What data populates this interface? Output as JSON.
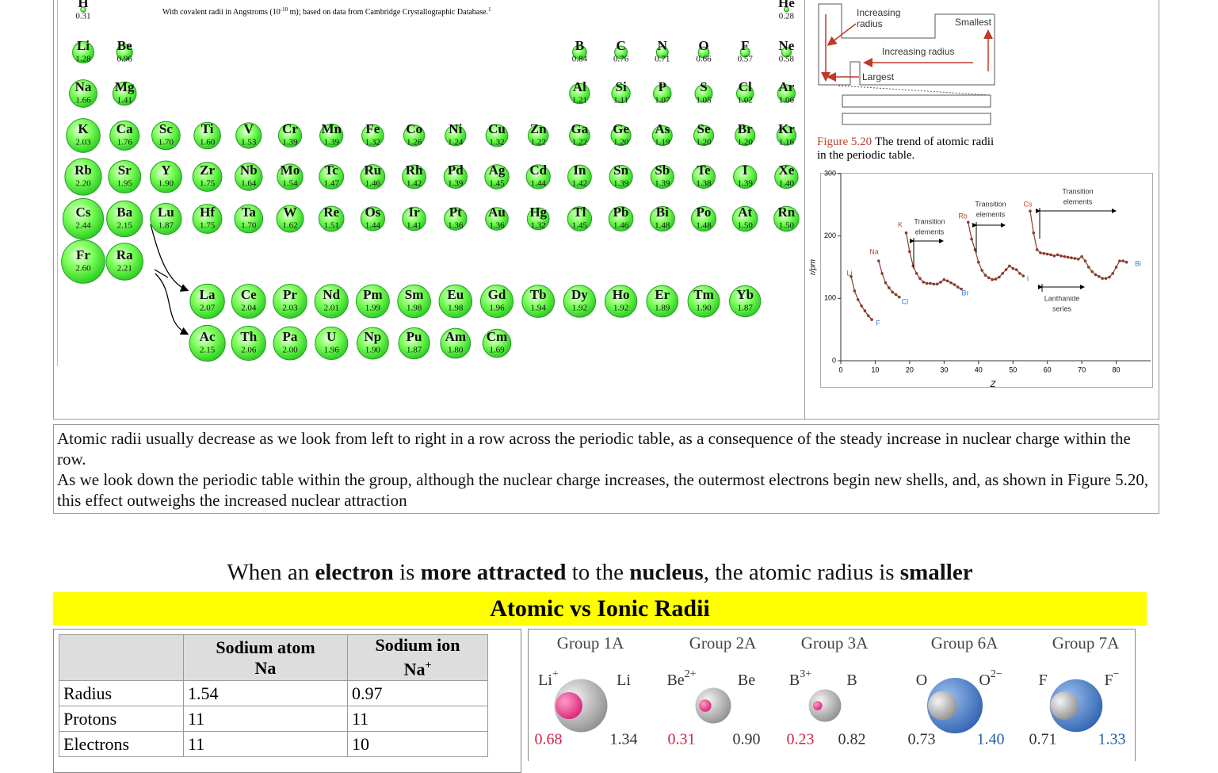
{
  "periodic_table": {
    "note": {
      "text": "With covalent radii in Angstroms (10",
      "exponent": "-10",
      "text_after": " m); based on data from Cambridge Crystallographic Database.",
      "footnote": "1"
    },
    "rows": [
      [
        {
          "symbol": "H",
          "radius": "0.31"
        },
        {
          "symbol": "He",
          "radius": "0.28"
        }
      ],
      [
        {
          "symbol": "Li",
          "radius": "1.28"
        },
        {
          "symbol": "Be",
          "radius": "0.96"
        },
        {
          "symbol": "B",
          "radius": "0.84"
        },
        {
          "symbol": "C",
          "radius": "0.76"
        },
        {
          "symbol": "N",
          "radius": "0.71"
        },
        {
          "symbol": "O",
          "radius": "0.66"
        },
        {
          "symbol": "F",
          "radius": "0.57"
        },
        {
          "symbol": "Ne",
          "radius": "0.58"
        }
      ],
      [
        {
          "symbol": "Na",
          "radius": "1.66"
        },
        {
          "symbol": "Mg",
          "radius": "1.41"
        },
        {
          "symbol": "Al",
          "radius": "1.21"
        },
        {
          "symbol": "Si",
          "radius": "1.11"
        },
        {
          "symbol": "P",
          "radius": "1.07"
        },
        {
          "symbol": "S",
          "radius": "1.05"
        },
        {
          "symbol": "Cl",
          "radius": "1.02"
        },
        {
          "symbol": "Ar",
          "radius": "1.06"
        }
      ],
      [
        {
          "symbol": "K",
          "radius": "2.03"
        },
        {
          "symbol": "Ca",
          "radius": "1.76"
        },
        {
          "symbol": "Sc",
          "radius": "1.70"
        },
        {
          "symbol": "Ti",
          "radius": "1.60"
        },
        {
          "symbol": "V",
          "radius": "1.53"
        },
        {
          "symbol": "Cr",
          "radius": "1.39"
        },
        {
          "symbol": "Mn",
          "radius": "1.39"
        },
        {
          "symbol": "Fe",
          "radius": "1.32"
        },
        {
          "symbol": "Co",
          "radius": "1.26"
        },
        {
          "symbol": "Ni",
          "radius": "1.24"
        },
        {
          "symbol": "Cu",
          "radius": "1.32"
        },
        {
          "symbol": "Zn",
          "radius": "1.22"
        },
        {
          "symbol": "Ga",
          "radius": "1.22"
        },
        {
          "symbol": "Ge",
          "radius": "1.20"
        },
        {
          "symbol": "As",
          "radius": "1.19"
        },
        {
          "symbol": "Se",
          "radius": "1.20"
        },
        {
          "symbol": "Br",
          "radius": "1.20"
        },
        {
          "symbol": "Kr",
          "radius": "1.16"
        }
      ],
      [
        {
          "symbol": "Rb",
          "radius": "2.20"
        },
        {
          "symbol": "Sr",
          "radius": "1.95"
        },
        {
          "symbol": "Y",
          "radius": "1.90"
        },
        {
          "symbol": "Zr",
          "radius": "1.75"
        },
        {
          "symbol": "Nb",
          "radius": "1.64"
        },
        {
          "symbol": "Mo",
          "radius": "1.54"
        },
        {
          "symbol": "Tc",
          "radius": "1.47"
        },
        {
          "symbol": "Ru",
          "radius": "1.46"
        },
        {
          "symbol": "Rh",
          "radius": "1.42"
        },
        {
          "symbol": "Pd",
          "radius": "1.39"
        },
        {
          "symbol": "Ag",
          "radius": "1.45"
        },
        {
          "symbol": "Cd",
          "radius": "1.44"
        },
        {
          "symbol": "In",
          "radius": "1.42"
        },
        {
          "symbol": "Sn",
          "radius": "1.39"
        },
        {
          "symbol": "Sb",
          "radius": "1.39"
        },
        {
          "symbol": "Te",
          "radius": "1.38"
        },
        {
          "symbol": "I",
          "radius": "1.39"
        },
        {
          "symbol": "Xe",
          "radius": "1.40"
        }
      ],
      [
        {
          "symbol": "Cs",
          "radius": "2.44"
        },
        {
          "symbol": "Ba",
          "radius": "2.15"
        },
        {
          "symbol": "Lu",
          "radius": "1.87"
        },
        {
          "symbol": "Hf",
          "radius": "1.75"
        },
        {
          "symbol": "Ta",
          "radius": "1.70"
        },
        {
          "symbol": "W",
          "radius": "1.62"
        },
        {
          "symbol": "Re",
          "radius": "1.51"
        },
        {
          "symbol": "Os",
          "radius": "1.44"
        },
        {
          "symbol": "Ir",
          "radius": "1.41"
        },
        {
          "symbol": "Pt",
          "radius": "1.36"
        },
        {
          "symbol": "Au",
          "radius": "1.36"
        },
        {
          "symbol": "Hg",
          "radius": "1.32"
        },
        {
          "symbol": "Tl",
          "radius": "1.45"
        },
        {
          "symbol": "Pb",
          "radius": "1.46"
        },
        {
          "symbol": "Bi",
          "radius": "1.48"
        },
        {
          "symbol": "Po",
          "radius": "1.48"
        },
        {
          "symbol": "At",
          "radius": "1.50"
        },
        {
          "symbol": "Rn",
          "radius": "1.50"
        }
      ],
      [
        {
          "symbol": "Fr",
          "radius": "2.60"
        },
        {
          "symbol": "Ra",
          "radius": "2.21"
        }
      ],
      [
        {
          "symbol": "La",
          "radius": "2.07"
        },
        {
          "symbol": "Ce",
          "radius": "2.04"
        },
        {
          "symbol": "Pr",
          "radius": "2.03"
        },
        {
          "symbol": "Nd",
          "radius": "2.01"
        },
        {
          "symbol": "Pm",
          "radius": "1.99"
        },
        {
          "symbol": "Sm",
          "radius": "1.98"
        },
        {
          "symbol": "Eu",
          "radius": "1.98"
        },
        {
          "symbol": "Gd",
          "radius": "1.96"
        },
        {
          "symbol": "Tb",
          "radius": "1.94"
        },
        {
          "symbol": "Dy",
          "radius": "1.92"
        },
        {
          "symbol": "Ho",
          "radius": "1.92"
        },
        {
          "symbol": "Er",
          "radius": "1.89"
        },
        {
          "symbol": "Tm",
          "radius": "1.90"
        },
        {
          "symbol": "Yb",
          "radius": "1.87"
        }
      ],
      [
        {
          "symbol": "Ac",
          "radius": "2.15"
        },
        {
          "symbol": "Th",
          "radius": "2.06"
        },
        {
          "symbol": "Pa",
          "radius": "2.00"
        },
        {
          "symbol": "U",
          "radius": "1.96"
        },
        {
          "symbol": "Np",
          "radius": "1.90"
        },
        {
          "symbol": "Pu",
          "radius": "1.87"
        },
        {
          "symbol": "Am",
          "radius": "1.80"
        },
        {
          "symbol": "Cm",
          "radius": "1.69"
        }
      ]
    ]
  },
  "trend_diagram": {
    "increasing_radius_top": [
      "Increasing",
      "radius"
    ],
    "smallest": "Smallest",
    "increasing_radius": "Increasing radius",
    "largest": "Largest"
  },
  "figure_caption": {
    "label": "Figure 5.20",
    "lines": [
      "The trend of atomic radii",
      "in the periodic table."
    ]
  },
  "chart_data": {
    "type": "line",
    "xlabel": "Z",
    "ylabel": "r/pm",
    "xlim": [
      0,
      90
    ],
    "ylim": [
      0,
      300
    ],
    "xticks": [
      0,
      10,
      20,
      30,
      40,
      50,
      60,
      70,
      80
    ],
    "yticks": [
      0,
      100,
      200,
      300
    ],
    "color": "#8b3a2a",
    "x": [
      3,
      4,
      5,
      6,
      7,
      8,
      9,
      10,
      11,
      12,
      13,
      14,
      15,
      16,
      17,
      18,
      19,
      20,
      21,
      22,
      23,
      24,
      25,
      26,
      27,
      28,
      29,
      30,
      31,
      32,
      33,
      34,
      35,
      36,
      37,
      38,
      39,
      40,
      41,
      42,
      43,
      44,
      45,
      46,
      47,
      48,
      49,
      50,
      51,
      52,
      53,
      54,
      55,
      56,
      57,
      58,
      59,
      60,
      61,
      62,
      63,
      64,
      65,
      66,
      67,
      68,
      69,
      70,
      71,
      72,
      73,
      74,
      75,
      76,
      77,
      78,
      79,
      80,
      81,
      82,
      83
    ],
    "values": [
      135,
      112,
      98,
      88,
      80,
      72,
      66,
      null,
      160,
      140,
      125,
      117,
      110,
      106,
      102,
      null,
      205,
      175,
      152,
      140,
      132,
      126,
      124,
      124,
      123,
      123,
      126,
      130,
      128,
      125,
      122,
      118,
      115,
      null,
      222,
      195,
      178,
      158,
      145,
      137,
      133,
      130,
      131,
      134,
      140,
      146,
      152,
      148,
      146,
      140,
      136,
      null,
      240,
      205,
      178,
      173,
      172,
      171,
      170,
      168,
      170,
      168,
      167,
      166,
      165,
      164,
      163,
      167,
      160,
      150,
      143,
      138,
      135,
      132,
      132,
      134,
      140,
      150,
      160,
      160,
      158
    ],
    "element_labels": [
      {
        "text": "Li",
        "color": "#c8402a"
      },
      {
        "text": "Na",
        "color": "#c8402a"
      },
      {
        "text": "K",
        "color": "#c8402a"
      },
      {
        "text": "Rb",
        "color": "#c8402a"
      },
      {
        "text": "Cs",
        "color": "#c8402a"
      },
      {
        "text": "F",
        "color": "#3a7bd5"
      },
      {
        "text": "Cl",
        "color": "#3a7bd5"
      },
      {
        "text": "Br",
        "color": "#3a7bd5"
      },
      {
        "text": "I",
        "color": "#3a7bd5"
      },
      {
        "text": "Bi",
        "color": "#3a7bd5"
      }
    ],
    "region_labels": [
      {
        "lines": [
          "Transition",
          "elements"
        ]
      },
      {
        "lines": [
          "Transition",
          "elements"
        ]
      },
      {
        "lines": [
          "Transition",
          "elements"
        ]
      },
      {
        "lines": [
          "Lanthanide",
          "series"
        ]
      }
    ]
  },
  "paragraphs": [
    "Atomic radii usually decrease as we look from left to right in a row across the periodic table, as a consequence of the steady increase in nuclear charge within the row.",
    "As we look down the periodic table within the group, although the nuclear charge increases, the outermost electrons begin new shells, and, as shown in Figure 5.20, this effect outweighs the increased nuclear attraction"
  ],
  "heading": [
    {
      "text": "When an ",
      "bold": false
    },
    {
      "text": "electron",
      "bold": true
    },
    {
      "text": " is ",
      "bold": false
    },
    {
      "text": "more attracted",
      "bold": true
    },
    {
      "text": " to the ",
      "bold": false
    },
    {
      "text": "nucleus",
      "bold": true
    },
    {
      "text": ", the atomic radius is ",
      "bold": false
    },
    {
      "text": "smaller",
      "bold": true
    }
  ],
  "banner": "Atomic vs Ionic Radii",
  "table": {
    "header": [
      {
        "title": "Sodium atom",
        "symbol": "Na"
      },
      {
        "title": "Sodium ion",
        "symbol": "Na",
        "sup": "+"
      }
    ],
    "rows": [
      [
        "Radius",
        "1.54",
        "0.97"
      ],
      [
        "Protons",
        "11",
        "11"
      ],
      [
        "Electrons",
        "11",
        "10"
      ]
    ]
  },
  "ionic_figure": {
    "groups": [
      {
        "name": "Group 1A",
        "left_label": {
          "base": "Li",
          "sup": "+"
        },
        "right_label": {
          "base": "Li"
        },
        "left_value": "0.68",
        "right_value": "1.34"
      },
      {
        "name": "Group 2A",
        "left_label": {
          "base": "Be",
          "sup": "2+"
        },
        "right_label": {
          "base": "Be"
        },
        "left_value": "0.31",
        "right_value": "0.90"
      },
      {
        "name": "Group 3A",
        "left_label": {
          "base": "B",
          "sup": "3+"
        },
        "right_label": {
          "base": "B"
        },
        "left_value": "0.23",
        "right_value": "0.82"
      },
      {
        "name": "Group 6A",
        "left_label": {
          "base": "O"
        },
        "right_label": {
          "base": "O",
          "sup": "2−"
        },
        "left_value": "0.73",
        "right_value": "1.40"
      },
      {
        "name": "Group 7A",
        "left_label": {
          "base": "F"
        },
        "right_label": {
          "base": "F",
          "sup": "−"
        },
        "left_value": "0.71",
        "right_value": "1.33"
      }
    ]
  }
}
